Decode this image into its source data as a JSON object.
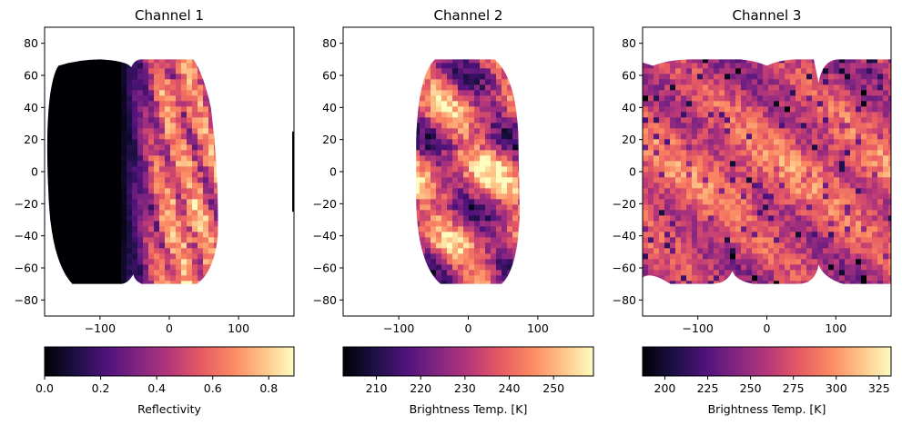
{
  "chart_data": [
    {
      "type": "heatmap",
      "title": "Channel 1",
      "xlim": [
        -180,
        180
      ],
      "ylim": [
        -90,
        90
      ],
      "x_ticks": [
        -100,
        0,
        100
      ],
      "y_ticks": [
        -80,
        -60,
        -40,
        -20,
        0,
        20,
        40,
        60,
        80
      ],
      "colormap": "magma",
      "colorbar": {
        "label": "Reflectivity",
        "range": [
          0.0,
          0.89
        ],
        "ticks": [
          "0.0",
          "0.2",
          "0.4",
          "0.6",
          "0.8"
        ],
        "tick_values": [
          0.0,
          0.2,
          0.4,
          0.6,
          0.8
        ]
      },
      "data_extent": {
        "lat": [
          -70,
          70
        ],
        "lon_center": -40
      },
      "grid": false
    },
    {
      "type": "heatmap",
      "title": "Channel 2",
      "xlim": [
        -180,
        180
      ],
      "ylim": [
        -90,
        90
      ],
      "x_ticks": [
        -100,
        0,
        100
      ],
      "y_ticks": [
        -80,
        -60,
        -40,
        -20,
        0,
        20,
        40,
        60,
        80
      ],
      "colormap": "magma",
      "colorbar": {
        "label": "Brightness Temp. [K]",
        "range": [
          202.5,
          259
        ],
        "ticks": [
          "210",
          "220",
          "230",
          "240",
          "250"
        ],
        "tick_values": [
          210,
          220,
          230,
          240,
          250
        ]
      },
      "data_extent": {
        "lat": [
          -70,
          70
        ],
        "lon": [
          -75,
          75
        ]
      },
      "grid": false
    },
    {
      "type": "heatmap",
      "title": "Channel 3",
      "xlim": [
        -180,
        180
      ],
      "ylim": [
        -90,
        90
      ],
      "x_ticks": [
        -100,
        0,
        100
      ],
      "y_ticks": [
        -80,
        -60,
        -40,
        -20,
        0,
        20,
        40,
        60,
        80
      ],
      "colormap": "magma",
      "colorbar": {
        "label": "Brightness Temp. [K]",
        "range": [
          187,
          332
        ],
        "ticks": [
          "200",
          "225",
          "250",
          "275",
          "300",
          "325"
        ],
        "tick_values": [
          200,
          225,
          250,
          275,
          300,
          325
        ]
      },
      "data_extent": {
        "lat": [
          -70,
          70
        ],
        "lon": [
          -180,
          180
        ]
      },
      "grid": false
    }
  ],
  "colors": {
    "magma": [
      "#000004",
      "#1c1044",
      "#4f127b",
      "#812581",
      "#b5367a",
      "#e55964",
      "#fb8761",
      "#fec287",
      "#fcfdbf"
    ]
  }
}
